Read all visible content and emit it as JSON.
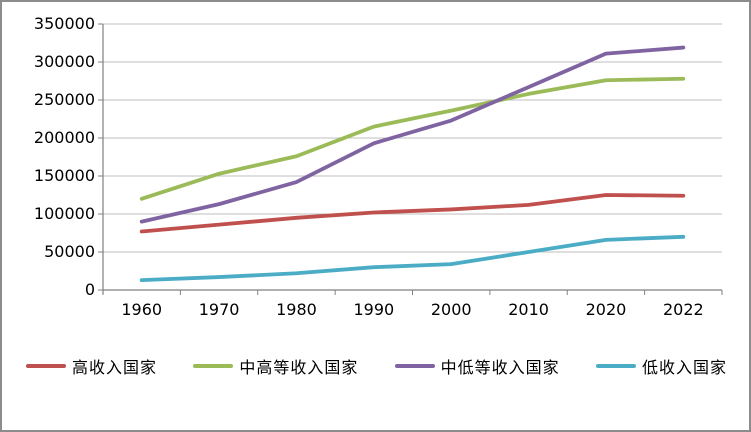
{
  "chart_data": {
    "type": "line",
    "title": "",
    "xlabel": "",
    "ylabel": "",
    "categories": [
      "1960",
      "1970",
      "1980",
      "1990",
      "2000",
      "2010",
      "2020",
      "2022"
    ],
    "series": [
      {
        "name": "高收入国家",
        "color": "#C0504D",
        "values": [
          77000,
          86000,
          95000,
          102000,
          106000,
          112000,
          125000,
          124000
        ]
      },
      {
        "name": "中高等收入国家",
        "color": "#9BBB59",
        "values": [
          120000,
          153000,
          176000,
          215000,
          236000,
          258000,
          276000,
          278000
        ]
      },
      {
        "name": "中低等收入国家",
        "color": "#8064A2",
        "values": [
          90000,
          113000,
          142000,
          193000,
          223000,
          267000,
          311000,
          319000
        ]
      },
      {
        "name": "低收入国家",
        "color": "#4BACC6",
        "values": [
          13000,
          17000,
          22000,
          30000,
          34000,
          50000,
          66000,
          70000
        ]
      }
    ],
    "ylim": [
      0,
      350000
    ],
    "ytick_interval": 50000,
    "y_tick_labels": [
      "0",
      "50000",
      "100000",
      "150000",
      "200000",
      "250000",
      "300000",
      "350000"
    ],
    "grid": true,
    "legend_position": "bottom"
  },
  "colors": {
    "gridline": "#bfbfbf",
    "axis": "#808080",
    "tick_text": "#000000",
    "frame_border": "#8c8c8c",
    "background": "#ffffff"
  }
}
